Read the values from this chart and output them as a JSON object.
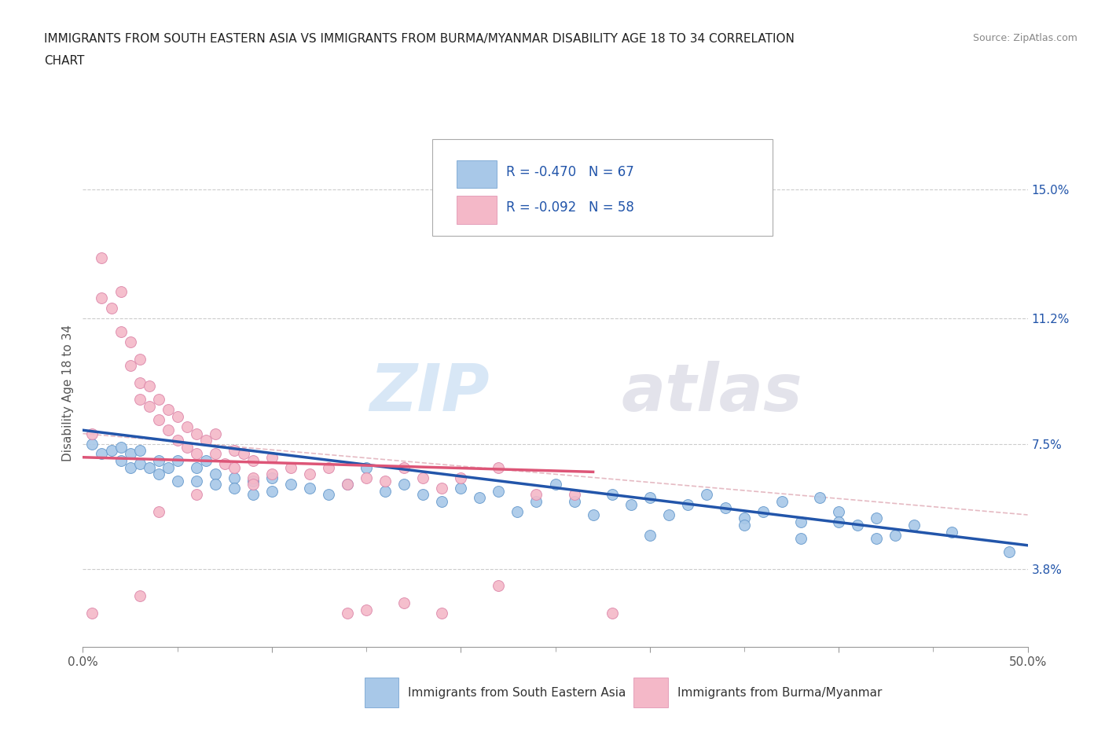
{
  "title_line1": "IMMIGRANTS FROM SOUTH EASTERN ASIA VS IMMIGRANTS FROM BURMA/MYANMAR DISABILITY AGE 18 TO 34 CORRELATION",
  "title_line2": "CHART",
  "source_text": "Source: ZipAtlas.com",
  "xlim": [
    0.0,
    0.5
  ],
  "ylim": [
    0.015,
    0.165
  ],
  "ylabel": "Disability Age 18 to 34",
  "yticks": [
    0.038,
    0.075,
    0.112,
    0.15
  ],
  "ytick_labels": [
    "3.8%",
    "7.5%",
    "11.2%",
    "15.0%"
  ],
  "xticks": [
    0.0,
    0.1,
    0.2,
    0.3,
    0.4,
    0.5
  ],
  "xtick_labels": [
    "0.0%",
    "",
    "",
    "",
    "",
    "50.0%"
  ],
  "series1_color": "#a8c8e8",
  "series2_color": "#f4b8c8",
  "series1_edge": "#6699cc",
  "series2_edge": "#dd88aa",
  "trend1_color": "#2255aa",
  "trend2_color": "#dd5577",
  "trend1_slope": -0.068,
  "trend1_intercept": 0.079,
  "trend2_slope": -0.016,
  "trend2_intercept": 0.071,
  "dash_slope": -0.048,
  "dash_intercept": 0.078,
  "R1": -0.47,
  "N1": 67,
  "R2": -0.092,
  "N2": 58,
  "legend_label1": "Immigrants from South Eastern Asia",
  "legend_label2": "Immigrants from Burma/Myanmar",
  "background_color": "#ffffff",
  "scatter1_x": [
    0.005,
    0.01,
    0.015,
    0.02,
    0.02,
    0.025,
    0.025,
    0.03,
    0.03,
    0.035,
    0.04,
    0.04,
    0.045,
    0.05,
    0.05,
    0.06,
    0.06,
    0.065,
    0.07,
    0.07,
    0.08,
    0.08,
    0.09,
    0.09,
    0.1,
    0.1,
    0.11,
    0.12,
    0.13,
    0.14,
    0.15,
    0.16,
    0.17,
    0.18,
    0.19,
    0.2,
    0.21,
    0.22,
    0.23,
    0.24,
    0.25,
    0.26,
    0.27,
    0.28,
    0.29,
    0.3,
    0.31,
    0.32,
    0.33,
    0.34,
    0.35,
    0.36,
    0.37,
    0.38,
    0.39,
    0.4,
    0.41,
    0.42,
    0.43,
    0.44,
    0.3,
    0.35,
    0.38,
    0.4,
    0.42,
    0.46,
    0.49
  ],
  "scatter1_y": [
    0.075,
    0.072,
    0.073,
    0.074,
    0.07,
    0.072,
    0.068,
    0.073,
    0.069,
    0.068,
    0.07,
    0.066,
    0.068,
    0.07,
    0.064,
    0.068,
    0.064,
    0.07,
    0.066,
    0.063,
    0.065,
    0.062,
    0.064,
    0.06,
    0.065,
    0.061,
    0.063,
    0.062,
    0.06,
    0.063,
    0.068,
    0.061,
    0.063,
    0.06,
    0.058,
    0.062,
    0.059,
    0.061,
    0.055,
    0.058,
    0.063,
    0.058,
    0.054,
    0.06,
    0.057,
    0.059,
    0.054,
    0.057,
    0.06,
    0.056,
    0.053,
    0.055,
    0.058,
    0.052,
    0.059,
    0.055,
    0.051,
    0.053,
    0.048,
    0.051,
    0.048,
    0.051,
    0.047,
    0.052,
    0.047,
    0.049,
    0.043
  ],
  "scatter2_x": [
    0.005,
    0.01,
    0.01,
    0.015,
    0.02,
    0.02,
    0.025,
    0.025,
    0.03,
    0.03,
    0.03,
    0.035,
    0.035,
    0.04,
    0.04,
    0.045,
    0.045,
    0.05,
    0.05,
    0.055,
    0.055,
    0.06,
    0.06,
    0.065,
    0.07,
    0.07,
    0.075,
    0.08,
    0.08,
    0.085,
    0.09,
    0.09,
    0.1,
    0.1,
    0.11,
    0.12,
    0.13,
    0.14,
    0.15,
    0.16,
    0.17,
    0.18,
    0.19,
    0.2,
    0.22,
    0.24,
    0.26,
    0.005,
    0.06,
    0.14,
    0.19,
    0.22,
    0.04,
    0.09,
    0.15,
    0.28,
    0.03,
    0.17
  ],
  "scatter2_y": [
    0.078,
    0.13,
    0.118,
    0.115,
    0.12,
    0.108,
    0.105,
    0.098,
    0.1,
    0.093,
    0.088,
    0.092,
    0.086,
    0.088,
    0.082,
    0.085,
    0.079,
    0.083,
    0.076,
    0.08,
    0.074,
    0.078,
    0.072,
    0.076,
    0.078,
    0.072,
    0.069,
    0.073,
    0.068,
    0.072,
    0.07,
    0.065,
    0.071,
    0.066,
    0.068,
    0.066,
    0.068,
    0.063,
    0.065,
    0.064,
    0.068,
    0.065,
    0.062,
    0.065,
    0.068,
    0.06,
    0.06,
    0.025,
    0.06,
    0.025,
    0.025,
    0.033,
    0.055,
    0.063,
    0.026,
    0.025,
    0.03,
    0.028
  ]
}
